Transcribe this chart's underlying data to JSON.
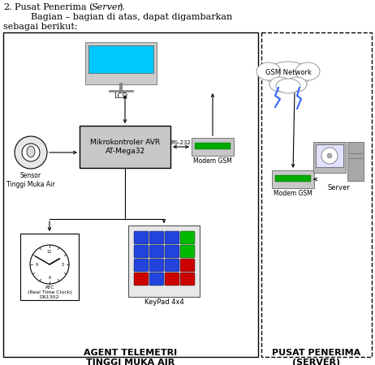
{
  "left_box_label": "AGENT TELEMETRI\nTINGGI MUKA AIR",
  "right_box_label": "PUSAT PENERIMA\n(SERVER)",
  "lcd_label": "LCD",
  "mcu_label": "Mikrokontroler AVR\nAT-Mega32",
  "sensor_label": "Sensor\nTinggi Muka Air",
  "rtc_label": "RTC\n(Real Time Clock)\nDS1302",
  "keypad_label": "KeyPad 4x4",
  "modem_gsm_left_label": "Modem GSM",
  "modem_gsm_right_label": "Modem GSM",
  "server_label": "Server",
  "gsm_label": "GSM Network",
  "rs232_label": "RS-232",
  "bg_color": "#ffffff",
  "lcd_screen_color": "#00c8ff",
  "keypad_colors": {
    "blue": "#2244dd",
    "green": "#00bb00",
    "red": "#cc0000",
    "orange": "#ee7700"
  }
}
